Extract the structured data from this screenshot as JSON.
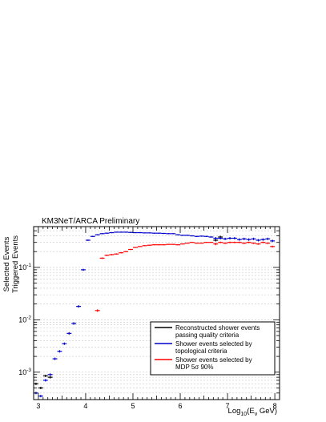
{
  "chart_data": {
    "type": "scatter",
    "title": "KM3NeT/ARCA Preliminary",
    "xlabel": "Log10(Eν GeV)",
    "xlabel_parts": {
      "prefix": "Log",
      "sub": "10",
      "mid": "(E",
      "sub2": "ν",
      "suffix": " GeV)"
    },
    "ylabel_lines": [
      "Selected Events",
      "Triggered Events"
    ],
    "xlim": [
      2.9,
      8.1
    ],
    "ylim": [
      0.0003,
      0.6
    ],
    "y_scale": "log",
    "grid": "y",
    "x_ticks": [
      3,
      4,
      5,
      6,
      7,
      8
    ],
    "y_ticks": [
      {
        "value": 0.001,
        "base": "10",
        "exp": "-3"
      },
      {
        "value": 0.01,
        "base": "10",
        "exp": "-2"
      },
      {
        "value": 0.1,
        "base": "10",
        "exp": "-1"
      }
    ],
    "legend_position": "bottom-right",
    "series": [
      {
        "name": "Reconstructed shower events passing quality criteria",
        "legend_lines": [
          "Reconstructed shower events",
          "passing quality criteria"
        ],
        "color": "#000000",
        "x": [
          2.95,
          3.05,
          3.15,
          3.25,
          6.75,
          6.85
        ],
        "y": [
          0.0006,
          0.0005,
          0.00085,
          0.0008,
          0.33,
          0.38
        ],
        "yerr": [
          0.00025,
          0.0002,
          0.0003,
          0.0003,
          0.09,
          0.05
        ]
      },
      {
        "name": "Shower events selected by topological criteria",
        "legend_lines": [
          "Shower events selected by",
          "topological criteria"
        ],
        "color": "#0000cc",
        "x": [
          2.95,
          3.05,
          3.15,
          3.25,
          3.35,
          3.45,
          3.55,
          3.65,
          3.75,
          3.85,
          3.95,
          4.05,
          4.15,
          4.25,
          4.35,
          4.45,
          4.55,
          4.65,
          4.75,
          4.85,
          4.95,
          5.05,
          5.15,
          5.25,
          5.35,
          5.45,
          5.55,
          5.65,
          5.75,
          5.85,
          5.95,
          6.05,
          6.15,
          6.25,
          6.35,
          6.45,
          6.55,
          6.65,
          6.75,
          6.85,
          6.95,
          7.05,
          7.15,
          7.25,
          7.35,
          7.45,
          7.55,
          7.65,
          7.75,
          7.85,
          7.95
        ],
        "y": [
          0.0004,
          0.00035,
          0.0007,
          0.0009,
          0.0018,
          0.0025,
          0.0035,
          0.0055,
          0.0085,
          0.018,
          0.09,
          0.33,
          0.39,
          0.42,
          0.44,
          0.45,
          0.46,
          0.47,
          0.47,
          0.47,
          0.465,
          0.46,
          0.46,
          0.455,
          0.455,
          0.45,
          0.45,
          0.445,
          0.44,
          0.44,
          0.42,
          0.41,
          0.41,
          0.4,
          0.39,
          0.395,
          0.39,
          0.38,
          0.36,
          0.36,
          0.35,
          0.36,
          0.36,
          0.34,
          0.35,
          0.34,
          0.35,
          0.33,
          0.34,
          0.35,
          0.32
        ],
        "yerr": [
          0.00015,
          0.00012,
          0.0002,
          0.00025,
          0.0003,
          0.0003,
          0.0004,
          0.0005,
          0.0008,
          0.001,
          0.004,
          0.01,
          0.01,
          0.01,
          0.01,
          0.01,
          0.01,
          0.01,
          0.01,
          0.01,
          0.01,
          0.01,
          0.01,
          0.01,
          0.01,
          0.01,
          0.01,
          0.01,
          0.01,
          0.01,
          0.01,
          0.01,
          0.01,
          0.01,
          0.01,
          0.01,
          0.01,
          0.01,
          0.03,
          0.02,
          0.02,
          0.02,
          0.02,
          0.02,
          0.02,
          0.02,
          0.02,
          0.02,
          0.02,
          0.02,
          0.02
        ]
      },
      {
        "name": "Shower events selected by MDP 5σ 90%",
        "legend_lines": [
          "Shower events selected by",
          "MDP 5σ 90%"
        ],
        "color": "#ff0000",
        "x": [
          4.25,
          4.35,
          4.45,
          4.55,
          4.65,
          4.75,
          4.85,
          4.95,
          5.05,
          5.15,
          5.25,
          5.35,
          5.45,
          5.55,
          5.65,
          5.75,
          5.85,
          5.95,
          6.05,
          6.15,
          6.25,
          6.35,
          6.45,
          6.55,
          6.65,
          6.75,
          6.85,
          6.95,
          7.05,
          7.15,
          7.25,
          7.35,
          7.45,
          7.55,
          7.65,
          7.75,
          7.85,
          7.95
        ],
        "y": [
          0.015,
          0.15,
          0.17,
          0.175,
          0.18,
          0.19,
          0.2,
          0.22,
          0.24,
          0.25,
          0.26,
          0.265,
          0.27,
          0.27,
          0.27,
          0.275,
          0.275,
          0.27,
          0.28,
          0.29,
          0.3,
          0.29,
          0.29,
          0.3,
          0.3,
          0.28,
          0.3,
          0.29,
          0.3,
          0.3,
          0.3,
          0.29,
          0.3,
          0.29,
          0.28,
          0.3,
          0.29,
          0.25
        ],
        "yerr": [
          0.001,
          0.005,
          0.005,
          0.005,
          0.005,
          0.005,
          0.005,
          0.005,
          0.005,
          0.005,
          0.005,
          0.005,
          0.005,
          0.005,
          0.005,
          0.005,
          0.005,
          0.005,
          0.005,
          0.005,
          0.005,
          0.005,
          0.005,
          0.005,
          0.005,
          0.03,
          0.01,
          0.01,
          0.01,
          0.01,
          0.01,
          0.01,
          0.01,
          0.01,
          0.01,
          0.01,
          0.01,
          0.01
        ]
      }
    ]
  }
}
